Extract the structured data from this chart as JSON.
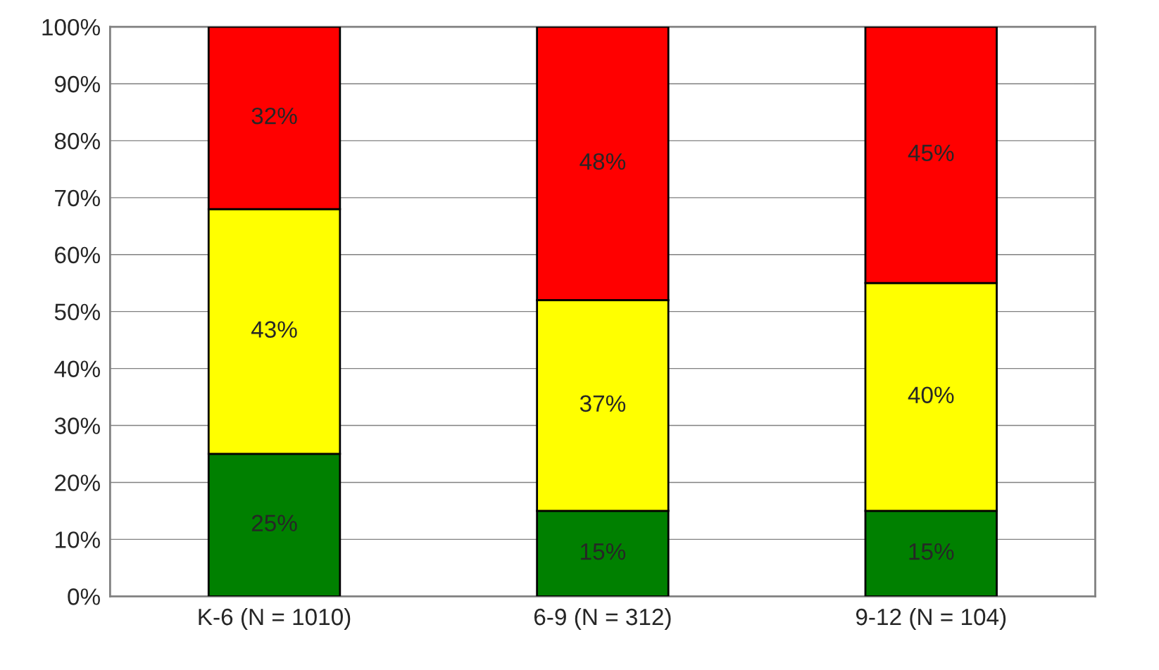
{
  "chart_data": {
    "type": "bar",
    "stacked": true,
    "categories": [
      "K-6 (N = 1010)",
      "6-9 (N = 312)",
      "9-12 (N = 104)"
    ],
    "series": [
      {
        "color": "#008000",
        "values": [
          25,
          15,
          15
        ],
        "value_labels": [
          "25%",
          "15%",
          "15%"
        ]
      },
      {
        "color": "#ffff00",
        "values": [
          43,
          37,
          40
        ],
        "value_labels": [
          "43%",
          "37%",
          "40%"
        ]
      },
      {
        "color": "#ff0000",
        "values": [
          32,
          48,
          45
        ],
        "value_labels": [
          "32%",
          "48%",
          "45%"
        ]
      }
    ],
    "ylim": [
      0,
      100
    ],
    "yticks": [
      {
        "value": 0,
        "label": "0%"
      },
      {
        "value": 10,
        "label": "10%"
      },
      {
        "value": 20,
        "label": "20%"
      },
      {
        "value": 30,
        "label": "30%"
      },
      {
        "value": 40,
        "label": "40%"
      },
      {
        "value": 50,
        "label": "50%"
      },
      {
        "value": 60,
        "label": "60%"
      },
      {
        "value": 70,
        "label": "70%"
      },
      {
        "value": 80,
        "label": "80%"
      },
      {
        "value": 90,
        "label": "90%"
      },
      {
        "value": 100,
        "label": "100%"
      }
    ],
    "grid": "y"
  }
}
